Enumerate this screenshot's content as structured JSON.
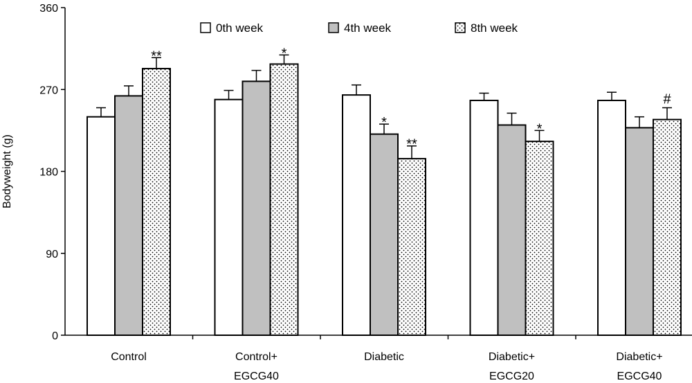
{
  "chart_data": {
    "type": "bar",
    "title": "",
    "xlabel": "",
    "ylabel": "Bodyweight (g)",
    "ylim": [
      0,
      360
    ],
    "yticks": [
      "0",
      "90",
      "180",
      "270",
      "360"
    ],
    "grid": false,
    "legend_position": "top",
    "categories": [
      [
        "Control"
      ],
      [
        "Control+",
        "EGCG40"
      ],
      [
        "Diabetic"
      ],
      [
        "Diabetic+",
        "EGCG20"
      ],
      [
        "Diabetic+",
        "EGCG40"
      ]
    ],
    "series": [
      {
        "name": "0th week",
        "fill": "white",
        "values": [
          240,
          259,
          264,
          258,
          258
        ],
        "errors": [
          10,
          10,
          11,
          8,
          9
        ]
      },
      {
        "name": "4th week",
        "fill": "gray",
        "values": [
          263,
          279,
          221,
          231,
          228
        ],
        "errors": [
          11,
          12,
          11,
          13,
          12
        ]
      },
      {
        "name": "8th week",
        "fill": "dotted",
        "values": [
          293,
          298,
          194,
          213,
          237
        ],
        "errors": [
          12,
          10,
          14,
          12,
          13
        ]
      }
    ],
    "annotations": [
      {
        "category": 0,
        "series": 2,
        "text": "**"
      },
      {
        "category": 1,
        "series": 2,
        "text": "*"
      },
      {
        "category": 2,
        "series": 1,
        "text": "*"
      },
      {
        "category": 2,
        "series": 2,
        "text": "**"
      },
      {
        "category": 3,
        "series": 2,
        "text": "*"
      },
      {
        "category": 4,
        "series": 2,
        "text": "#"
      }
    ],
    "colors": {
      "white": "#ffffff",
      "gray": "#c0c0c0",
      "dotted_bg": "#ffffff",
      "dotted_dot": "#000000",
      "stroke": "#000000"
    }
  }
}
